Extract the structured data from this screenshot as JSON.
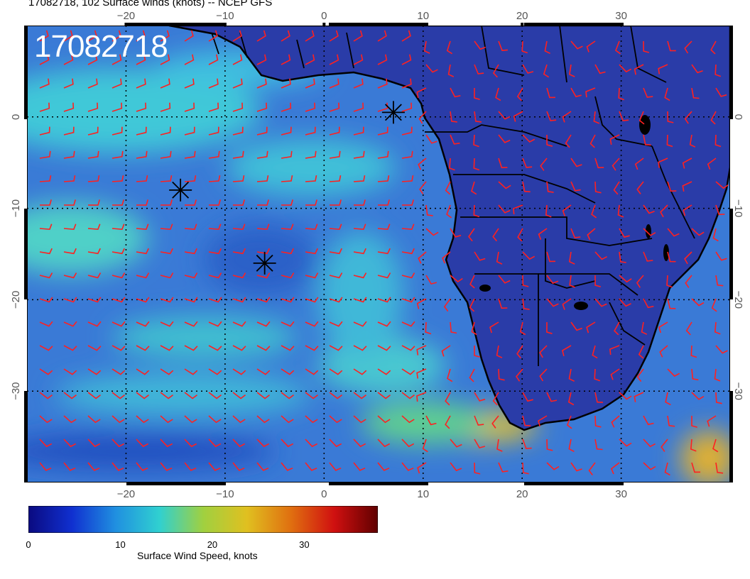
{
  "header": {
    "title": "17082718, 102 Surface winds (knots) -- NCEP GFS",
    "stamp": "17082718"
  },
  "map": {
    "region": "South Atlantic and Southern Africa",
    "lon_range": [
      -30,
      41
    ],
    "lat_range": [
      -40,
      10
    ],
    "lon_ticks": [
      -20,
      -10,
      0,
      10,
      20,
      30
    ],
    "lat_ticks": [
      0,
      -10,
      -20,
      -30
    ],
    "lon_tick_labels": [
      "−20",
      "−10",
      "0",
      "10",
      "20",
      "30"
    ],
    "lat_tick_labels": [
      "0",
      "−10",
      "−20",
      "−30"
    ],
    "grid": true,
    "markers": [
      {
        "lon": 7,
        "lat": 0.5
      },
      {
        "lon": -14.5,
        "lat": -8
      },
      {
        "lon": -6,
        "lat": -16
      }
    ],
    "barb_color": "#ff2020",
    "land_color": "#2a3aa8",
    "ocean_color": "#3a78d8"
  },
  "colorbar": {
    "label": "Surface Wind Speed, knots",
    "min": 0,
    "max": 38,
    "ticks": [
      0,
      10,
      20,
      30
    ],
    "tick_labels": [
      "0",
      "10",
      "20",
      "30"
    ],
    "colors": [
      "#0a0a80",
      "#1030d0",
      "#2090e0",
      "#30d0d0",
      "#a0d040",
      "#e0c020",
      "#e07010",
      "#d01010",
      "#600000"
    ]
  }
}
